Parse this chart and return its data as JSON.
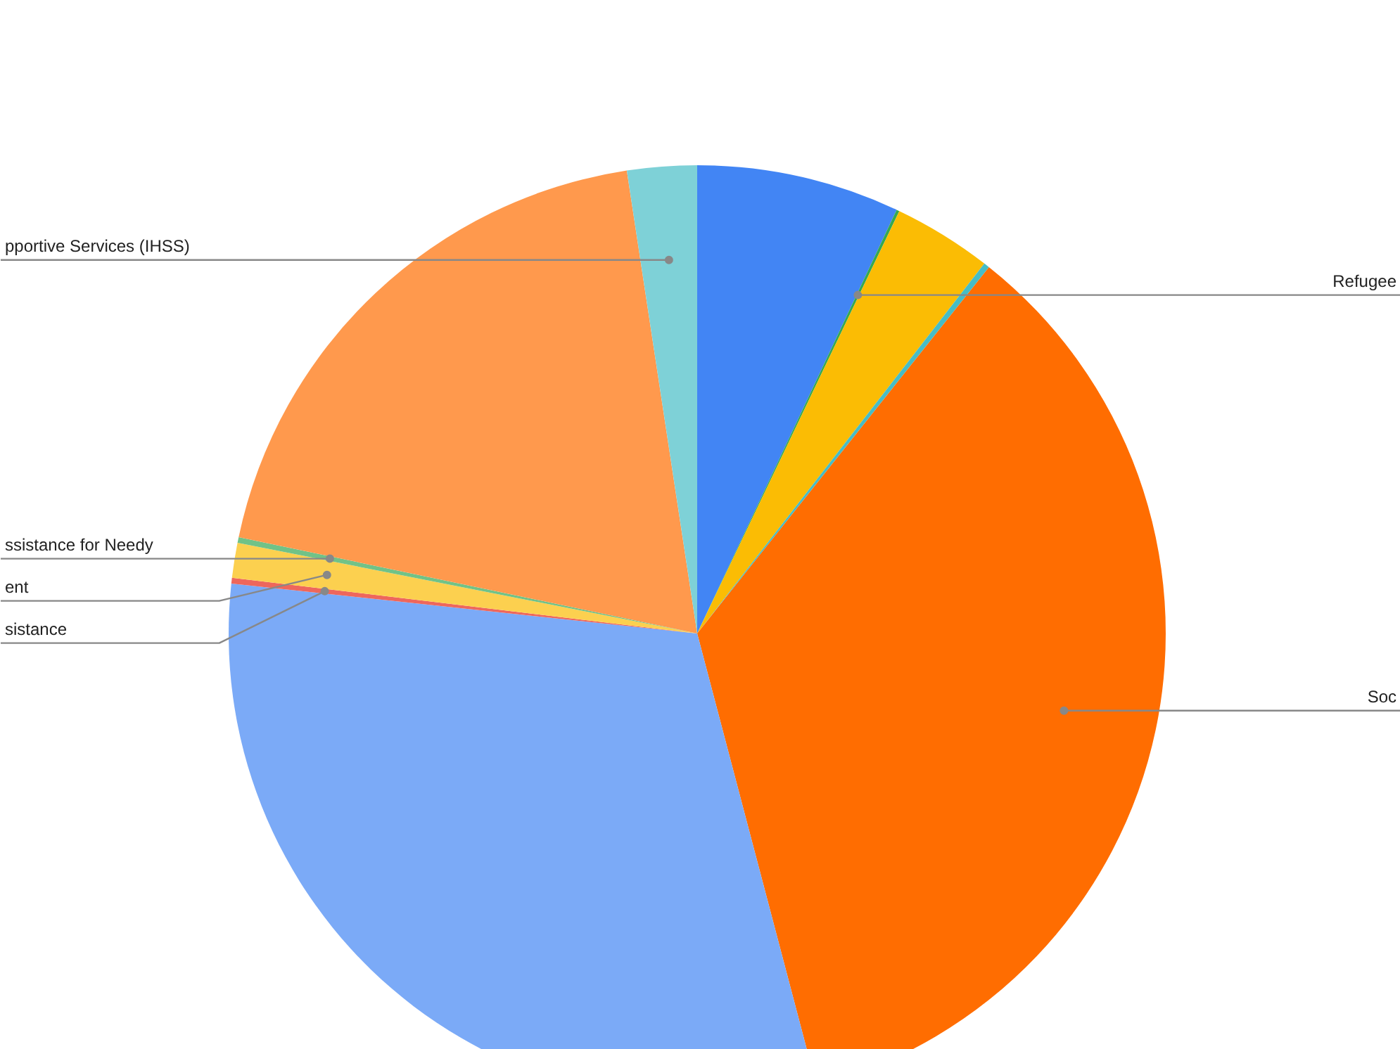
{
  "chart_data": {
    "type": "pie",
    "categories": [
      null,
      "Refugee",
      null,
      null,
      "Soc",
      null,
      "sistance",
      "ent",
      "ssistance for Needy",
      null,
      "pportive Services (IHSS)"
    ],
    "values": [
      7.0,
      0.1,
      3.4,
      0.2,
      35.2,
      30.8,
      0.2,
      1.2,
      0.2,
      19.3,
      2.4
    ],
    "colors": [
      "#4285f4",
      "#34a853",
      "#fbbc04",
      "#46bdc6",
      "#ff6d01",
      "#7baaf7",
      "#ee675c",
      "#fcd04f",
      "#71c287",
      "#ff994d",
      "#7ed1d7"
    ]
  }
}
